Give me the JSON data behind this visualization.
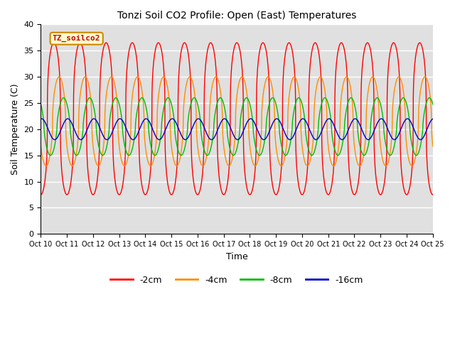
{
  "title": "Tonzi Soil CO2 Profile: Open (East) Temperatures",
  "xlabel": "Time",
  "ylabel": "Soil Temperature (C)",
  "ylim": [
    0,
    40
  ],
  "yticks": [
    0,
    5,
    10,
    15,
    20,
    25,
    30,
    35,
    40
  ],
  "xlim": [
    0,
    15
  ],
  "xtick_labels": [
    "Oct 10",
    "Oct 11",
    "Oct 12",
    "Oct 13",
    "Oct 14",
    "Oct 15",
    "Oct 16",
    "Oct 17",
    "Oct 18",
    "Oct 19",
    "Oct 20",
    "Oct 21",
    "Oct 22",
    "Oct 23",
    "Oct 24",
    "Oct 25"
  ],
  "legend_label": "TZ_soilco2",
  "series_labels": [
    "-2cm",
    "-4cm",
    "-8cm",
    "-16cm"
  ],
  "series_colors": [
    "#ff0000",
    "#ff8c00",
    "#00bb00",
    "#0000cc"
  ],
  "background_color": "#e0e0e0",
  "n_days": 15,
  "points_per_day": 240,
  "series": {
    "-2cm": {
      "base": 22,
      "amp": 14.5,
      "phase": 0.25,
      "sharpness": 3.0
    },
    "-4cm": {
      "base": 21.5,
      "amp": 8.5,
      "phase": 0.45,
      "sharpness": 2.0
    },
    "-8cm": {
      "base": 20.5,
      "amp": 5.5,
      "phase": 0.62,
      "sharpness": 1.5
    },
    "-16cm": {
      "base": 20.0,
      "amp": 2.0,
      "phase": 0.78,
      "sharpness": 1.0
    }
  }
}
